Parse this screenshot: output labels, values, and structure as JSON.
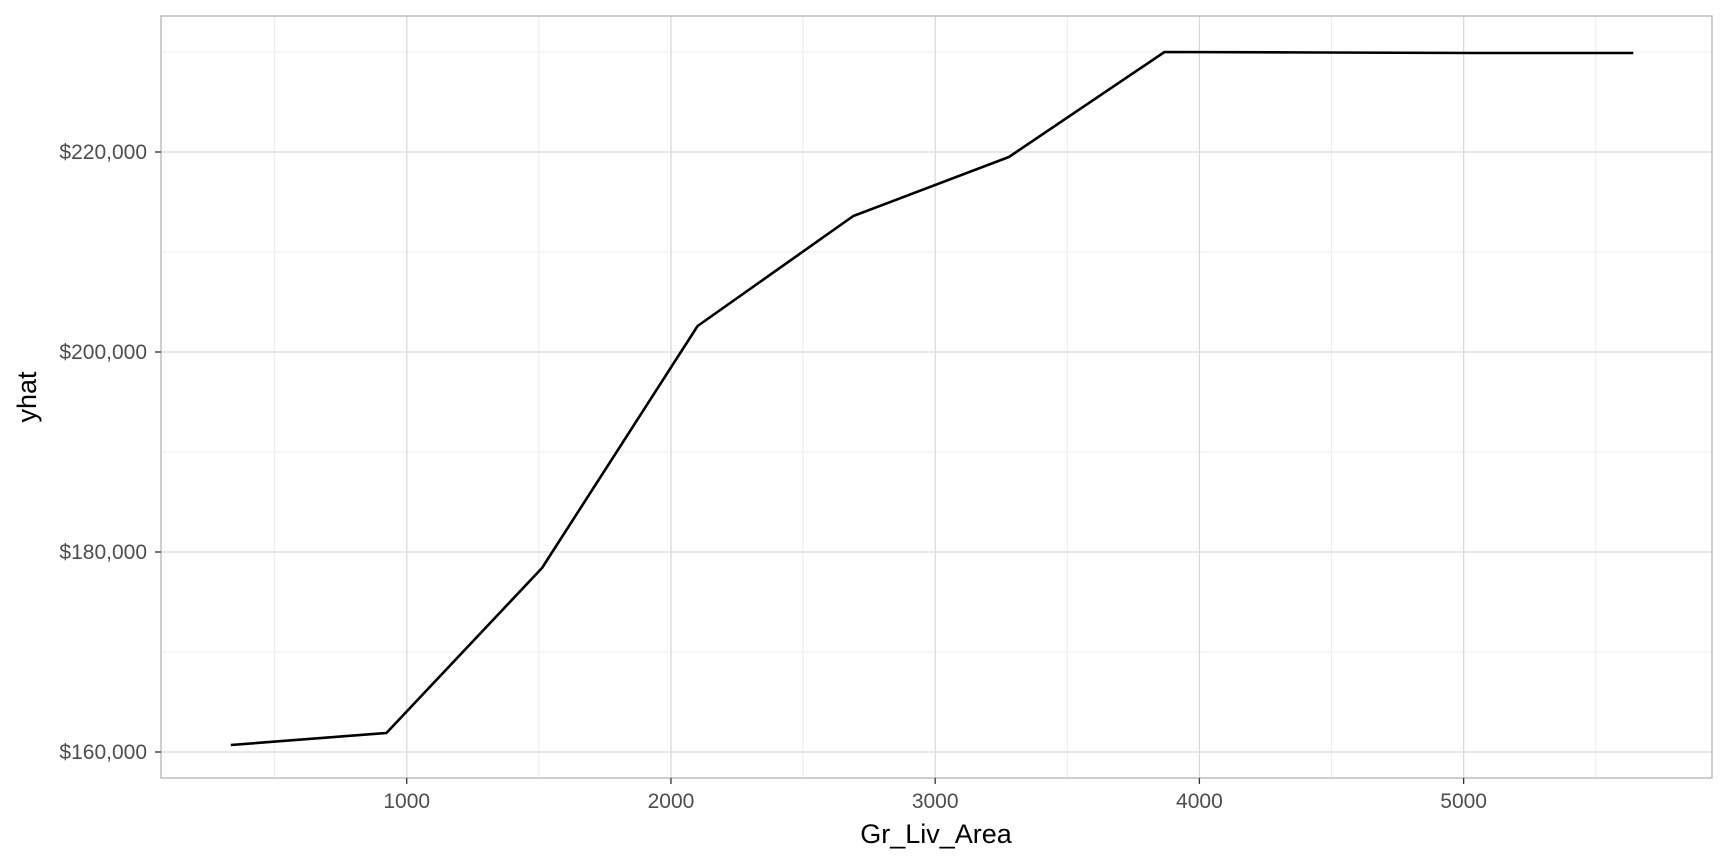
{
  "chart_data": {
    "type": "line",
    "title": "",
    "xlabel": "Gr_Liv_Area",
    "ylabel": "yhat",
    "xlim": [
      70,
      5940
    ],
    "ylim": [
      157400,
      233600
    ],
    "x_ticks": [
      1000,
      2000,
      3000,
      4000,
      5000
    ],
    "x_tick_labels": [
      "1000",
      "2000",
      "3000",
      "4000",
      "5000"
    ],
    "x_minor_ticks": [
      500,
      1500,
      2500,
      3500,
      4500,
      5500
    ],
    "y_ticks": [
      160000,
      180000,
      200000,
      220000
    ],
    "y_tick_labels": [
      "$160,000",
      "$180,000",
      "$200,000",
      "$220,000"
    ],
    "y_minor_ticks": [
      170000,
      190000,
      210000,
      230000
    ],
    "grid": true,
    "legend": "none",
    "series": [
      {
        "color": "#000000",
        "x": [
          334,
          923,
          1512,
          2101,
          2690,
          3279,
          3868,
          4457,
          5046,
          5642
        ],
        "y": [
          160700,
          161900,
          178400,
          202600,
          213600,
          219500,
          230000,
          229950,
          229900,
          229900
        ]
      }
    ],
    "colors": {
      "panel_border": "#b3b3b3",
      "grid_major": "#d9d9d9",
      "grid_minor": "#ececec",
      "line": "#000000"
    }
  }
}
